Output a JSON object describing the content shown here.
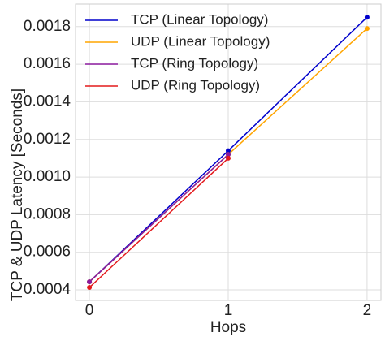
{
  "chart_data": {
    "type": "line",
    "x": [
      0,
      1,
      2
    ],
    "xlabel": "Hops",
    "ylabel": "TCP & UDP Latency  [Seconds]",
    "xlim": [
      -0.1,
      2.1
    ],
    "xticks": [
      0,
      1,
      2
    ],
    "ylim": [
      0.000344,
      0.00192
    ],
    "yticks": [
      0.0004,
      0.0006,
      0.0008,
      {
        "value": 0.001,
        "label": "0.0010"
      },
      0.0012,
      0.0014,
      0.0016,
      0.0018
    ],
    "grid": true,
    "legend": "upper left",
    "series": [
      {
        "name": "TCP (Linear Topology)",
        "color": "#0000cc",
        "values": [
          0.000443,
          0.00114,
          0.00185
        ]
      },
      {
        "name": "UDP (Linear Topology)",
        "color": "#ffa500",
        "values": [
          0.000443,
          0.00112,
          0.00179
        ]
      },
      {
        "name": "TCP (Ring Topology)",
        "color": "#8b1a9e",
        "values": [
          0.000443,
          0.00112,
          null
        ]
      },
      {
        "name": "UDP (Ring Topology)",
        "color": "#e41a1c",
        "values": [
          0.000413,
          0.0011,
          null
        ]
      }
    ]
  }
}
